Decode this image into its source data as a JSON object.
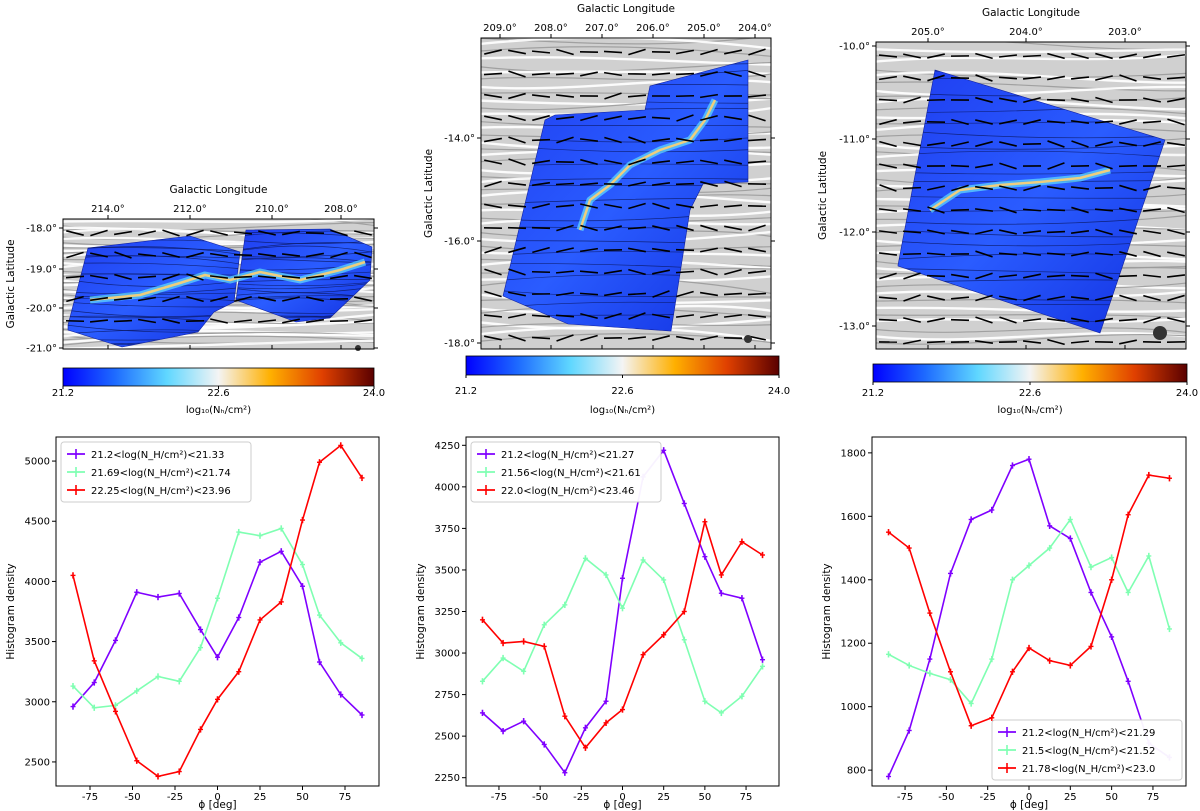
{
  "figure": {
    "colormap_stops": [
      "#0000ff",
      "#1e6bff",
      "#5fd7ff",
      "#f4f4f4",
      "#ffb000",
      "#e04000",
      "#5a0000"
    ]
  },
  "chart_data": [
    {
      "type": "map",
      "panel": "top-left",
      "xlabel": "Galactic Longitude",
      "ylabel": "Galactic Latitude",
      "x_ticks": [
        "214.0°",
        "212.0°",
        "210.0°",
        "208.0°"
      ],
      "y_ticks": [
        "-18.0°",
        "-19.0°",
        "-20.0°",
        "-21.0°"
      ],
      "colorbar": {
        "label": "log₁₀(Nₕ/cm²)",
        "ticks": [
          "21.2",
          "22.6",
          "24.0"
        ],
        "range": [
          21.2,
          24.0
        ]
      }
    },
    {
      "type": "map",
      "panel": "top-middle",
      "xlabel": "Galactic Longitude",
      "ylabel": "Galactic Latitude",
      "x_ticks": [
        "209.0°",
        "208.0°",
        "207.0°",
        "206.0°",
        "205.0°",
        "204.0°"
      ],
      "y_ticks": [
        "-14.0°",
        "-16.0°",
        "-18.0°"
      ],
      "colorbar": {
        "label": "log₁₀(Nₕ/cm²)",
        "ticks": [
          "21.2",
          "22.6",
          "24.0"
        ],
        "range": [
          21.2,
          24.0
        ]
      }
    },
    {
      "type": "map",
      "panel": "top-right",
      "xlabel": "Galactic Longitude",
      "ylabel": "Galactic Latitude",
      "x_ticks": [
        "205.0°",
        "204.0°",
        "203.0°"
      ],
      "y_ticks": [
        "-10.0°",
        "-11.0°",
        "-12.0°",
        "-13.0°"
      ],
      "colorbar": {
        "label": "log₁₀(Nₕ/cm²)",
        "ticks": [
          "21.2",
          "22.6",
          "24.0"
        ],
        "range": [
          21.2,
          24.0
        ]
      }
    },
    {
      "type": "line",
      "panel": "bottom-left",
      "xlabel": "ϕ [deg]",
      "ylabel": "Histogram density",
      "xlim": [
        -95,
        95
      ],
      "ylim": [
        2300,
        5200
      ],
      "x_ticks": [
        -75,
        -50,
        -25,
        0,
        25,
        50,
        75
      ],
      "y_ticks": [
        2500,
        3000,
        3500,
        4000,
        4500,
        5000
      ],
      "legend_position": "top-left",
      "x": [
        -85,
        -72.5,
        -60,
        -47.5,
        -35,
        -22.5,
        -10,
        0,
        12.5,
        25,
        37.5,
        50,
        60,
        72.5,
        85
      ],
      "series": [
        {
          "name": "21.2<log(N_H/cm²)<21.33",
          "color": "#7f00ff",
          "values": [
            2960,
            3160,
            3510,
            3910,
            3870,
            3900,
            3600,
            3370,
            3700,
            4160,
            4250,
            3960,
            3330,
            3060,
            2890
          ]
        },
        {
          "name": "21.69<log(N_H/cm²)<21.74",
          "color": "#7fffb2",
          "values": [
            3130,
            2950,
            2970,
            3090,
            3210,
            3170,
            3450,
            3860,
            4410,
            4380,
            4440,
            4140,
            3720,
            3490,
            3360
          ]
        },
        {
          "name": "22.25<log(N_H/cm²)<23.96",
          "color": "#ff0000",
          "values": [
            4050,
            3340,
            2920,
            2510,
            2380,
            2420,
            2770,
            3020,
            3250,
            3680,
            3830,
            4510,
            4990,
            5130,
            4860
          ]
        }
      ]
    },
    {
      "type": "line",
      "panel": "bottom-middle",
      "xlabel": "ϕ [deg]",
      "ylabel": "Histogram density",
      "xlim": [
        -95,
        95
      ],
      "ylim": [
        2200,
        4300
      ],
      "x_ticks": [
        -75,
        -50,
        -25,
        0,
        25,
        50,
        75
      ],
      "y_ticks": [
        2250,
        2500,
        2750,
        3000,
        3250,
        3500,
        3750,
        4000,
        4250
      ],
      "legend_position": "top-left",
      "x": [
        -85,
        -72.5,
        -60,
        -47.5,
        -35,
        -22.5,
        -10,
        0,
        12.5,
        25,
        37.5,
        50,
        60,
        72.5,
        85
      ],
      "series": [
        {
          "name": "21.2<log(N_H/cm²)<21.27",
          "color": "#7f00ff",
          "values": [
            2640,
            2530,
            2590,
            2450,
            2280,
            2550,
            2710,
            3450,
            4060,
            4220,
            3900,
            3580,
            3360,
            3330,
            2960
          ]
        },
        {
          "name": "21.56<log(N_H/cm²)<21.61",
          "color": "#7fffb2",
          "values": [
            2830,
            2970,
            2890,
            3170,
            3290,
            3570,
            3470,
            3270,
            3560,
            3440,
            3080,
            2710,
            2640,
            2740,
            2920
          ]
        },
        {
          "name": "22.0<log(N_H/cm²)<23.46",
          "color": "#ff0000",
          "values": [
            3200,
            3060,
            3070,
            3040,
            2620,
            2430,
            2580,
            2660,
            2990,
            3110,
            3250,
            3790,
            3470,
            3670,
            3590
          ]
        }
      ]
    },
    {
      "type": "line",
      "panel": "bottom-right",
      "xlabel": "ϕ [deg]",
      "ylabel": "Histogram density",
      "xlim": [
        -95,
        95
      ],
      "ylim": [
        750,
        1850
      ],
      "x_ticks": [
        -75,
        -50,
        -25,
        0,
        25,
        50,
        75
      ],
      "y_ticks": [
        800,
        1000,
        1200,
        1400,
        1600,
        1800
      ],
      "legend_position": "bottom-right",
      "x": [
        -85,
        -72.5,
        -60,
        -47.5,
        -35,
        -22.5,
        -10,
        0,
        12.5,
        25,
        37.5,
        50,
        60,
        72.5,
        85
      ],
      "series": [
        {
          "name": "21.2<log(N_H/cm²)<21.29",
          "color": "#7f00ff",
          "values": [
            780,
            925,
            1150,
            1420,
            1590,
            1620,
            1760,
            1780,
            1570,
            1530,
            1360,
            1220,
            1080,
            885,
            840
          ]
        },
        {
          "name": "21.5<log(N_H/cm²)<21.52",
          "color": "#7fffb2",
          "values": [
            1165,
            1130,
            1105,
            1085,
            1010,
            1150,
            1400,
            1445,
            1500,
            1590,
            1440,
            1470,
            1360,
            1475,
            1245
          ]
        },
        {
          "name": "21.78<log(N_H/cm²)<23.0",
          "color": "#ff0000",
          "values": [
            1550,
            1500,
            1295,
            1110,
            940,
            965,
            1110,
            1185,
            1145,
            1130,
            1190,
            1400,
            1605,
            1730,
            1720
          ]
        }
      ]
    }
  ]
}
